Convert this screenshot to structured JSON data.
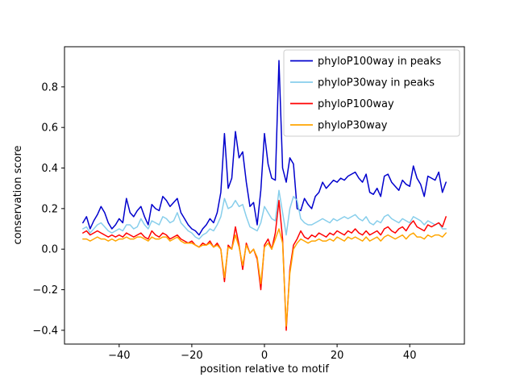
{
  "figure": {
    "background": "#ffffff"
  },
  "chart_data": {
    "type": "line",
    "title": "",
    "xlabel": "position relative to motif",
    "ylabel": "conservation score",
    "xlim": [
      -55.05,
      55.05
    ],
    "ylim": [
      -0.468,
      0.998
    ],
    "xticks": {
      "values": [
        -40,
        -20,
        0,
        20,
        40
      ],
      "labels": [
        "−40",
        "−20",
        "0",
        "20",
        "40"
      ]
    },
    "yticks": {
      "values": [
        -0.4,
        -0.2,
        0.0,
        0.2,
        0.4,
        0.6,
        0.8
      ],
      "labels": [
        "−0.4",
        "−0.2",
        "0.0",
        "0.2",
        "0.4",
        "0.6",
        "0.8"
      ]
    },
    "grid": false,
    "legend": {
      "position": "upper right"
    },
    "x": {
      "start": -50,
      "step": 1,
      "end": 50
    },
    "series": [
      {
        "name": "phyloP100way in peaks",
        "color": "#0000cd",
        "values": [
          0.13,
          0.16,
          0.1,
          0.14,
          0.17,
          0.21,
          0.18,
          0.13,
          0.1,
          0.12,
          0.15,
          0.13,
          0.25,
          0.18,
          0.16,
          0.19,
          0.21,
          0.16,
          0.12,
          0.22,
          0.2,
          0.19,
          0.26,
          0.24,
          0.21,
          0.23,
          0.25,
          0.18,
          0.15,
          0.12,
          0.1,
          0.09,
          0.07,
          0.1,
          0.12,
          0.15,
          0.13,
          0.18,
          0.28,
          0.57,
          0.3,
          0.35,
          0.58,
          0.45,
          0.48,
          0.33,
          0.21,
          0.23,
          0.12,
          0.29,
          0.57,
          0.42,
          0.35,
          0.34,
          0.93,
          0.4,
          0.33,
          0.45,
          0.42,
          0.2,
          0.19,
          0.25,
          0.22,
          0.2,
          0.26,
          0.28,
          0.33,
          0.3,
          0.32,
          0.34,
          0.33,
          0.35,
          0.34,
          0.36,
          0.37,
          0.38,
          0.35,
          0.33,
          0.37,
          0.28,
          0.27,
          0.3,
          0.26,
          0.36,
          0.37,
          0.33,
          0.31,
          0.29,
          0.34,
          0.32,
          0.31,
          0.41,
          0.35,
          0.32,
          0.26,
          0.36,
          0.35,
          0.34,
          0.38,
          0.28,
          0.33
        ]
      },
      {
        "name": "phyloP30way in peaks",
        "color": "#87ceeb",
        "values": [
          0.1,
          0.11,
          0.08,
          0.1,
          0.12,
          0.13,
          0.11,
          0.09,
          0.08,
          0.09,
          0.1,
          0.09,
          0.12,
          0.12,
          0.1,
          0.11,
          0.15,
          0.12,
          0.1,
          0.14,
          0.13,
          0.12,
          0.16,
          0.15,
          0.13,
          0.14,
          0.18,
          0.13,
          0.11,
          0.09,
          0.08,
          0.06,
          0.05,
          0.07,
          0.08,
          0.1,
          0.09,
          0.12,
          0.16,
          0.25,
          0.2,
          0.21,
          0.24,
          0.21,
          0.22,
          0.16,
          0.11,
          0.1,
          0.09,
          0.13,
          0.21,
          0.18,
          0.15,
          0.14,
          0.29,
          0.18,
          0.07,
          0.2,
          0.26,
          0.24,
          0.15,
          0.13,
          0.12,
          0.12,
          0.13,
          0.14,
          0.15,
          0.14,
          0.13,
          0.15,
          0.14,
          0.15,
          0.16,
          0.15,
          0.16,
          0.17,
          0.15,
          0.14,
          0.16,
          0.13,
          0.12,
          0.14,
          0.13,
          0.16,
          0.17,
          0.15,
          0.14,
          0.13,
          0.15,
          0.14,
          0.13,
          0.16,
          0.15,
          0.14,
          0.12,
          0.14,
          0.13,
          0.12,
          0.13,
          0.1,
          0.1
        ]
      },
      {
        "name": "phyloP100way",
        "color": "#ff0000",
        "values": [
          0.08,
          0.09,
          0.07,
          0.08,
          0.09,
          0.08,
          0.07,
          0.06,
          0.07,
          0.06,
          0.07,
          0.06,
          0.08,
          0.07,
          0.06,
          0.07,
          0.08,
          0.06,
          0.05,
          0.09,
          0.07,
          0.06,
          0.08,
          0.07,
          0.05,
          0.06,
          0.07,
          0.05,
          0.04,
          0.03,
          0.04,
          0.02,
          0.01,
          0.03,
          0.02,
          0.04,
          0.01,
          0.03,
          0.0,
          -0.16,
          0.02,
          0.0,
          0.11,
          0.02,
          -0.1,
          0.03,
          -0.02,
          0.0,
          -0.05,
          -0.2,
          0.02,
          0.05,
          0.0,
          0.08,
          0.24,
          0.05,
          -0.4,
          -0.1,
          0.02,
          0.05,
          0.09,
          0.06,
          0.05,
          0.07,
          0.06,
          0.08,
          0.07,
          0.06,
          0.08,
          0.07,
          0.09,
          0.08,
          0.07,
          0.09,
          0.08,
          0.1,
          0.08,
          0.07,
          0.09,
          0.07,
          0.08,
          0.09,
          0.07,
          0.1,
          0.11,
          0.09,
          0.08,
          0.1,
          0.11,
          0.09,
          0.12,
          0.14,
          0.11,
          0.1,
          0.09,
          0.12,
          0.11,
          0.12,
          0.13,
          0.11,
          0.16
        ]
      },
      {
        "name": "phyloP30way",
        "color": "#ffa500",
        "values": [
          0.05,
          0.05,
          0.04,
          0.05,
          0.06,
          0.05,
          0.05,
          0.04,
          0.05,
          0.04,
          0.05,
          0.05,
          0.06,
          0.05,
          0.05,
          0.06,
          0.06,
          0.05,
          0.04,
          0.06,
          0.05,
          0.05,
          0.06,
          0.06,
          0.04,
          0.05,
          0.06,
          0.04,
          0.03,
          0.03,
          0.03,
          0.02,
          0.01,
          0.02,
          0.02,
          0.03,
          0.01,
          0.02,
          0.0,
          -0.14,
          0.01,
          0.0,
          0.07,
          0.01,
          -0.08,
          0.02,
          -0.02,
          0.0,
          -0.04,
          -0.17,
          0.01,
          0.03,
          0.0,
          0.05,
          0.1,
          0.03,
          -0.38,
          -0.12,
          0.0,
          0.03,
          0.05,
          0.04,
          0.03,
          0.04,
          0.04,
          0.05,
          0.04,
          0.04,
          0.05,
          0.04,
          0.06,
          0.05,
          0.04,
          0.06,
          0.05,
          0.06,
          0.05,
          0.04,
          0.06,
          0.04,
          0.05,
          0.06,
          0.04,
          0.06,
          0.07,
          0.06,
          0.05,
          0.06,
          0.07,
          0.05,
          0.07,
          0.08,
          0.06,
          0.06,
          0.05,
          0.07,
          0.06,
          0.07,
          0.07,
          0.06,
          0.08
        ]
      }
    ]
  }
}
